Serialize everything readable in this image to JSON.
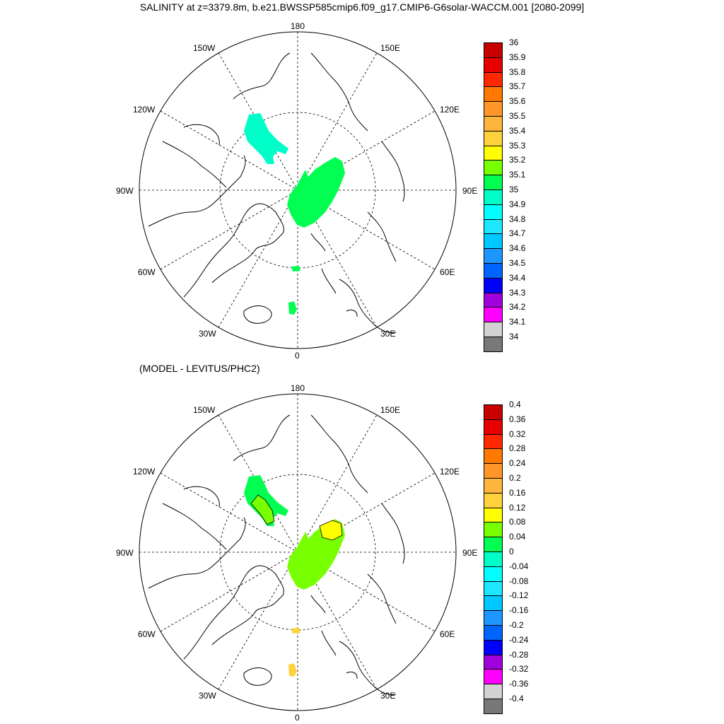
{
  "title": "SALINITY at z=3379.8m, b.e21.BWSSP585cmip6.f09_g17.CMIP6-G6solar-WACCM.001 [2080-2099]",
  "subtitle": "(MODEL - LEVITUS/PHC2)",
  "lon_labels": [
    "180",
    "150E",
    "120E",
    "90E",
    "60E",
    "30E",
    "0",
    "30W",
    "60W",
    "90W",
    "120W",
    "150W"
  ],
  "colors": {
    "land_outline": "#000000",
    "grid": "#000000"
  },
  "panel1": {
    "colorbar": {
      "labels": [
        "36",
        "35.9",
        "35.8",
        "35.7",
        "35.6",
        "35.5",
        "35.4",
        "35.3",
        "35.2",
        "35.1",
        "35",
        "34.9",
        "34.8",
        "34.7",
        "34.6",
        "34.5",
        "34.4",
        "34.3",
        "34.2",
        "34.1",
        "34"
      ],
      "colors": [
        "#c80000",
        "#e60000",
        "#ff2800",
        "#ff7800",
        "#ff9628",
        "#ffb43c",
        "#ffd23c",
        "#ffff00",
        "#78ff00",
        "#00ff50",
        "#00ffc8",
        "#00ffff",
        "#1ee6ff",
        "#00c8ff",
        "#1e96ff",
        "#0064ff",
        "#0000ff",
        "#a000dc",
        "#ff00ff",
        "#d2d2d2",
        "#787878"
      ]
    },
    "fill_colors": {
      "canada_basin": "#00ffc8",
      "eurasian_basin": "#00ff50",
      "fram": "#00ff50",
      "greenland_sea": "#00ff50"
    }
  },
  "panel2": {
    "colorbar": {
      "labels": [
        "0.4",
        "0.36",
        "0.32",
        "0.28",
        "0.24",
        "0.2",
        "0.16",
        "0.12",
        "0.08",
        "0.04",
        "0",
        "-0.04",
        "-0.08",
        "-0.12",
        "-0.16",
        "-0.2",
        "-0.24",
        "-0.28",
        "-0.32",
        "-0.36",
        "-0.4"
      ],
      "colors": [
        "#c80000",
        "#e60000",
        "#ff2800",
        "#ff7800",
        "#ff9628",
        "#ffb43c",
        "#ffd23c",
        "#ffff00",
        "#78ff00",
        "#00ff50",
        "#00ffc8",
        "#00ffff",
        "#1ee6ff",
        "#00c8ff",
        "#1e96ff",
        "#0064ff",
        "#0000ff",
        "#a000dc",
        "#ff00ff",
        "#d2d2d2",
        "#787878"
      ]
    },
    "fill_colors": {
      "canada_basin": "#00ff50",
      "canada_inner": "#78ff00",
      "eurasian_basin": "#78ff00",
      "yellow_patch": "#ffff00",
      "fram": "#ffd23c",
      "greenland_sea": "#ffd23c"
    }
  }
}
